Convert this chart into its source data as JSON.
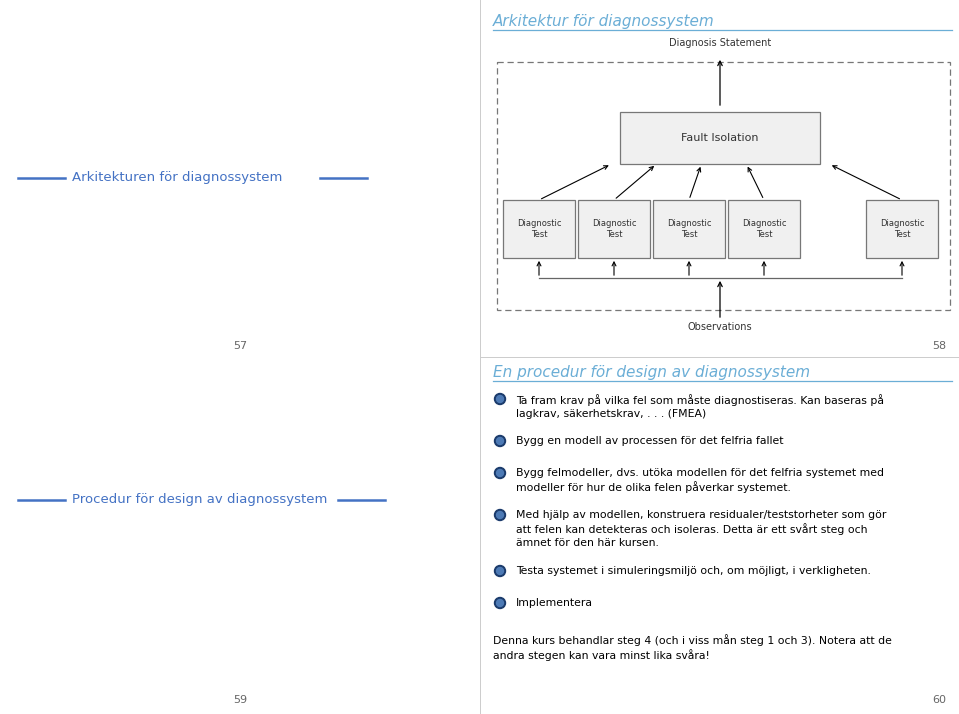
{
  "bg_color": "#ffffff",
  "left_panel": {
    "slide1_title": "Arkitekturen för diagnossystem",
    "slide1_page": "57",
    "slide2_title": "Procedur för design av diagnossystem",
    "slide2_page": "59"
  },
  "right_panel_top": {
    "title": "Arkitektur för diagnossystem",
    "page": "58",
    "diagram": {
      "diagnosis_statement": "Diagnosis Statement",
      "fault_isolation": "Fault Isolation",
      "diagnostic_tests": [
        "Diagnostic\nTest",
        "Diagnostic\nTest",
        "Diagnostic\nTest",
        "Diagnostic\nTest",
        "Diagnostic\nTest"
      ],
      "observations": "Observations"
    }
  },
  "right_panel_bottom": {
    "title": "En procedur för design av diagnossystem",
    "page": "60",
    "bullets": [
      "Ta fram krav på vilka fel som måste diagnostiseras. Kan baseras på\nlagkrav, säkerhetskrav, . . . (FMEA)",
      "Bygg en modell av processen för det felfria fallet",
      "Bygg felmodeller, dvs. utöka modellen för det felfria systemet med\nmodeller för hur de olika felen påverkar systemet.",
      "Med hjälp av modellen, konstruera residualer/teststorheter som gör\natt felen kan detekteras och isoleras. Detta är ett svårt steg och\nämnet för den här kursen.",
      "Testa systemet i simuleringsmiljö och, om möjligt, i verkligheten.",
      "Implementera"
    ],
    "footer": "Denna kurs behandlar steg 4 (och i viss mån steg 1 och 3). Notera att de\nandra stegen kan vara minst lika svåra!"
  },
  "title_color": "#6baed6",
  "line_color": "#6baed6",
  "text_color": "#000000",
  "left_title_color": "#4472c4",
  "diagram_box_color": "#888888",
  "diagram_text_color": "#333333"
}
